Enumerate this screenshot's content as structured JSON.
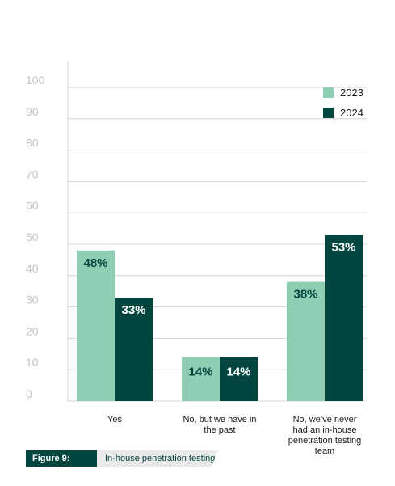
{
  "chart_data": {
    "type": "bar",
    "categories": [
      [
        "Yes"
      ],
      [
        "No, but we have in",
        "the past"
      ],
      [
        "No, we’ve never",
        "had an in-house",
        "penetration testing",
        "team"
      ]
    ],
    "series": [
      {
        "name": "2023",
        "values": [
          48,
          14,
          38
        ],
        "labels": [
          "48%",
          "14%",
          "38%"
        ],
        "color": "#8fceb3",
        "label_color": "#02463f"
      },
      {
        "name": "2024",
        "values": [
          33,
          14,
          53
        ],
        "labels": [
          "33%",
          "14%",
          "53%"
        ],
        "color": "#02463f",
        "label_color": "#ffffff"
      }
    ],
    "yticks": [
      "0",
      "10",
      "20",
      "30",
      "40",
      "50",
      "60",
      "70",
      "80",
      "90",
      "100"
    ],
    "ylim": [
      0,
      100
    ],
    "grid": true,
    "legend_position": "top-right"
  },
  "caption": {
    "tag": "Figure 9:",
    "title": "In-house penetration testing"
  },
  "colors": {
    "grid": "#d4d4d4",
    "tick_text": "#c4c4c4",
    "accent_dark": "#02463f",
    "accent_light": "#8fceb3"
  }
}
